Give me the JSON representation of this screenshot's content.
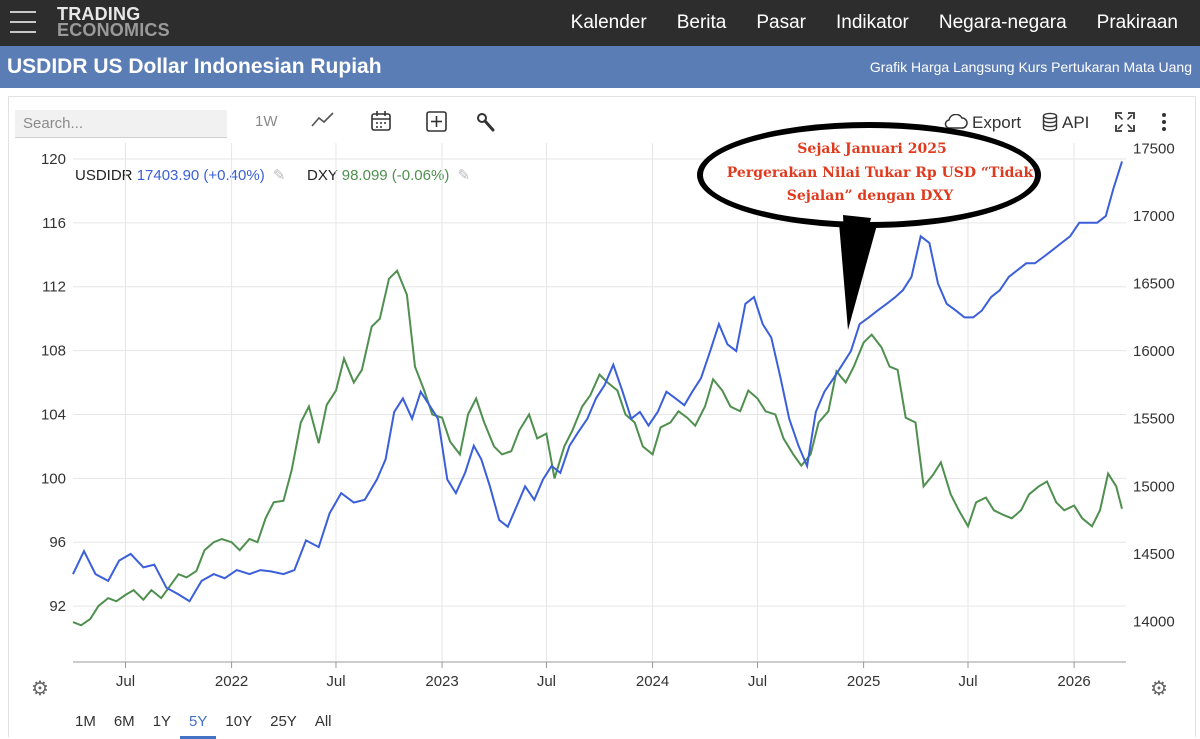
{
  "nav": {
    "logo_line1": "TRADING",
    "logo_line2": "ECONOMICS",
    "items": [
      "Kalender",
      "Berita",
      "Pasar",
      "Indikator",
      "Negara-negara",
      "Prakiraan"
    ]
  },
  "header": {
    "title": "USDIDR US Dollar Indonesian Rupiah",
    "subtitle": "Grafik Harga Langsung Kurs Pertukaran Mata Uang"
  },
  "toolbar": {
    "search_placeholder": "Search...",
    "interval_label": "1W",
    "export_label": "Export",
    "api_label": "API"
  },
  "legend": {
    "usdidr_name": "USDIDR",
    "usdidr_value": "17403.90 (+0.40%)",
    "dxy_name": "DXY",
    "dxy_value": "98.099 (-0.06%)"
  },
  "annotation": {
    "line1": "Sejak Januari 2025",
    "line2": "Pergerakan Nilai Tukar Rp USD “Tidak",
    "line3": "Sejalan” dengan DXY"
  },
  "range_tabs": {
    "items": [
      "1M",
      "6M",
      "1Y",
      "5Y",
      "10Y",
      "25Y",
      "All"
    ],
    "active": "5Y"
  },
  "colors": {
    "usdidr": "#3b5fd9",
    "dxy": "#4f8f4f",
    "title_bar": "#5b7db5",
    "annotation_text": "#e03a1e"
  },
  "chart_data": {
    "type": "line",
    "x_range": [
      "2021-04-01",
      "2026-04-01"
    ],
    "x_ticks": [
      {
        "date": "2021-07-01",
        "label": "Jul"
      },
      {
        "date": "2022-01-01",
        "label": "2022"
      },
      {
        "date": "2022-07-01",
        "label": "Jul"
      },
      {
        "date": "2023-01-01",
        "label": "2023"
      },
      {
        "date": "2023-07-01",
        "label": "Jul"
      },
      {
        "date": "2024-01-01",
        "label": "2024"
      },
      {
        "date": "2024-07-01",
        "label": "Jul"
      },
      {
        "date": "2025-01-01",
        "label": "2025"
      },
      {
        "date": "2025-07-01",
        "label": "Jul"
      },
      {
        "date": "2026-01-01",
        "label": "2026"
      }
    ],
    "left_axis": {
      "series": "DXY",
      "ticks": [
        92,
        96,
        100,
        104,
        108,
        112,
        116,
        120
      ],
      "range": [
        88.5,
        121
      ]
    },
    "right_axis": {
      "series": "USDIDR",
      "ticks": [
        14000,
        14500,
        15000,
        15500,
        16000,
        16500,
        17000,
        17500
      ],
      "range": [
        13700,
        17540
      ]
    },
    "grid": true,
    "series": [
      {
        "name": "USDIDR",
        "axis": "right",
        "points": [
          [
            "2021-04-01",
            14350
          ],
          [
            "2021-04-20",
            14520
          ],
          [
            "2021-05-10",
            14350
          ],
          [
            "2021-06-01",
            14300
          ],
          [
            "2021-06-20",
            14450
          ],
          [
            "2021-07-10",
            14500
          ],
          [
            "2021-08-01",
            14400
          ],
          [
            "2021-08-20",
            14420
          ],
          [
            "2021-09-10",
            14250
          ],
          [
            "2021-10-01",
            14200
          ],
          [
            "2021-10-20",
            14150
          ],
          [
            "2021-11-10",
            14300
          ],
          [
            "2021-12-01",
            14350
          ],
          [
            "2021-12-20",
            14320
          ],
          [
            "2022-01-10",
            14380
          ],
          [
            "2022-02-01",
            14350
          ],
          [
            "2022-02-20",
            14380
          ],
          [
            "2022-03-10",
            14370
          ],
          [
            "2022-04-01",
            14350
          ],
          [
            "2022-04-20",
            14380
          ],
          [
            "2022-05-10",
            14600
          ],
          [
            "2022-06-01",
            14550
          ],
          [
            "2022-06-20",
            14800
          ],
          [
            "2022-07-10",
            14950
          ],
          [
            "2022-08-01",
            14880
          ],
          [
            "2022-08-20",
            14900
          ],
          [
            "2022-09-10",
            15050
          ],
          [
            "2022-09-25",
            15200
          ],
          [
            "2022-10-10",
            15550
          ],
          [
            "2022-10-25",
            15650
          ],
          [
            "2022-11-10",
            15500
          ],
          [
            "2022-11-25",
            15700
          ],
          [
            "2022-12-10",
            15600
          ],
          [
            "2022-12-25",
            15500
          ],
          [
            "2023-01-10",
            15050
          ],
          [
            "2023-01-25",
            14950
          ],
          [
            "2023-02-10",
            15100
          ],
          [
            "2023-02-25",
            15300
          ],
          [
            "2023-03-10",
            15200
          ],
          [
            "2023-03-25",
            15000
          ],
          [
            "2023-04-10",
            14750
          ],
          [
            "2023-04-25",
            14700
          ],
          [
            "2023-05-10",
            14850
          ],
          [
            "2023-05-25",
            15000
          ],
          [
            "2023-06-10",
            14900
          ],
          [
            "2023-06-25",
            15050
          ],
          [
            "2023-07-10",
            15150
          ],
          [
            "2023-07-25",
            15100
          ],
          [
            "2023-08-10",
            15300
          ],
          [
            "2023-08-25",
            15400
          ],
          [
            "2023-09-10",
            15500
          ],
          [
            "2023-09-25",
            15650
          ],
          [
            "2023-10-10",
            15750
          ],
          [
            "2023-10-25",
            15900
          ],
          [
            "2023-11-10",
            15700
          ],
          [
            "2023-11-25",
            15500
          ],
          [
            "2023-12-10",
            15550
          ],
          [
            "2023-12-25",
            15450
          ],
          [
            "2024-01-10",
            15550
          ],
          [
            "2024-01-25",
            15700
          ],
          [
            "2024-02-10",
            15650
          ],
          [
            "2024-02-25",
            15600
          ],
          [
            "2024-03-10",
            15700
          ],
          [
            "2024-03-25",
            15800
          ],
          [
            "2024-04-10",
            16000
          ],
          [
            "2024-04-25",
            16200
          ],
          [
            "2024-05-10",
            16050
          ],
          [
            "2024-05-25",
            16000
          ],
          [
            "2024-06-10",
            16350
          ],
          [
            "2024-06-25",
            16400
          ],
          [
            "2024-07-10",
            16200
          ],
          [
            "2024-07-25",
            16100
          ],
          [
            "2024-08-10",
            15800
          ],
          [
            "2024-08-25",
            15500
          ],
          [
            "2024-09-10",
            15300
          ],
          [
            "2024-09-25",
            15150
          ],
          [
            "2024-10-10",
            15550
          ],
          [
            "2024-10-25",
            15700
          ],
          [
            "2024-11-10",
            15800
          ],
          [
            "2024-11-25",
            15900
          ],
          [
            "2024-12-10",
            16000
          ],
          [
            "2024-12-25",
            16200
          ],
          [
            "2025-01-10",
            16250
          ],
          [
            "2025-01-25",
            16300
          ],
          [
            "2025-02-10",
            16350
          ],
          [
            "2025-02-25",
            16400
          ],
          [
            "2025-03-10",
            16450
          ],
          [
            "2025-03-25",
            16550
          ],
          [
            "2025-04-10",
            16850
          ],
          [
            "2025-04-25",
            16800
          ],
          [
            "2025-05-10",
            16500
          ],
          [
            "2025-05-25",
            16350
          ],
          [
            "2025-06-10",
            16300
          ],
          [
            "2025-06-25",
            16250
          ],
          [
            "2025-07-10",
            16250
          ],
          [
            "2025-07-25",
            16300
          ],
          [
            "2025-08-10",
            16400
          ],
          [
            "2025-08-25",
            16450
          ],
          [
            "2025-09-10",
            16550
          ],
          [
            "2025-09-25",
            16600
          ],
          [
            "2025-10-10",
            16650
          ],
          [
            "2025-10-25",
            16650
          ],
          [
            "2025-11-10",
            16700
          ],
          [
            "2025-11-25",
            16750
          ],
          [
            "2025-12-10",
            16800
          ],
          [
            "2025-12-25",
            16850
          ],
          [
            "2026-01-10",
            16950
          ],
          [
            "2026-01-25",
            16950
          ],
          [
            "2026-02-10",
            16950
          ],
          [
            "2026-02-25",
            17000
          ],
          [
            "2026-03-10",
            17200
          ],
          [
            "2026-03-25",
            17403.9
          ]
        ]
      },
      {
        "name": "DXY",
        "axis": "left",
        "points": [
          [
            "2021-04-01",
            91.0
          ],
          [
            "2021-04-15",
            90.8
          ],
          [
            "2021-05-01",
            91.2
          ],
          [
            "2021-05-15",
            92.0
          ],
          [
            "2021-06-01",
            92.5
          ],
          [
            "2021-06-15",
            92.3
          ],
          [
            "2021-07-01",
            92.7
          ],
          [
            "2021-07-15",
            93.0
          ],
          [
            "2021-08-01",
            92.4
          ],
          [
            "2021-08-15",
            93.0
          ],
          [
            "2021-09-01",
            92.5
          ],
          [
            "2021-09-15",
            93.2
          ],
          [
            "2021-10-01",
            94.0
          ],
          [
            "2021-10-15",
            93.8
          ],
          [
            "2021-11-01",
            94.2
          ],
          [
            "2021-11-15",
            95.5
          ],
          [
            "2021-12-01",
            96.0
          ],
          [
            "2021-12-15",
            96.2
          ],
          [
            "2022-01-01",
            96.0
          ],
          [
            "2022-01-15",
            95.5
          ],
          [
            "2022-02-01",
            96.2
          ],
          [
            "2022-02-15",
            96.0
          ],
          [
            "2022-03-01",
            97.5
          ],
          [
            "2022-03-15",
            98.5
          ],
          [
            "2022-04-01",
            98.6
          ],
          [
            "2022-04-15",
            100.5
          ],
          [
            "2022-05-01",
            103.5
          ],
          [
            "2022-05-15",
            104.5
          ],
          [
            "2022-06-01",
            102.2
          ],
          [
            "2022-06-15",
            104.6
          ],
          [
            "2022-07-01",
            105.5
          ],
          [
            "2022-07-15",
            107.5
          ],
          [
            "2022-08-01",
            106.0
          ],
          [
            "2022-08-15",
            106.8
          ],
          [
            "2022-09-01",
            109.5
          ],
          [
            "2022-09-15",
            110.0
          ],
          [
            "2022-10-01",
            112.5
          ],
          [
            "2022-10-15",
            113.0
          ],
          [
            "2022-11-01",
            111.5
          ],
          [
            "2022-11-15",
            107.0
          ],
          [
            "2022-12-01",
            105.5
          ],
          [
            "2022-12-15",
            104.0
          ],
          [
            "2023-01-01",
            103.8
          ],
          [
            "2023-01-15",
            102.3
          ],
          [
            "2023-02-01",
            101.5
          ],
          [
            "2023-02-15",
            104.0
          ],
          [
            "2023-03-01",
            105.0
          ],
          [
            "2023-03-15",
            103.5
          ],
          [
            "2023-04-01",
            102.0
          ],
          [
            "2023-04-15",
            101.5
          ],
          [
            "2023-05-01",
            101.7
          ],
          [
            "2023-05-15",
            103.0
          ],
          [
            "2023-06-01",
            104.0
          ],
          [
            "2023-06-15",
            102.5
          ],
          [
            "2023-07-01",
            102.8
          ],
          [
            "2023-07-15",
            100.0
          ],
          [
            "2023-08-01",
            102.0
          ],
          [
            "2023-08-15",
            103.0
          ],
          [
            "2023-09-01",
            104.5
          ],
          [
            "2023-09-15",
            105.2
          ],
          [
            "2023-10-01",
            106.5
          ],
          [
            "2023-10-15",
            106.0
          ],
          [
            "2023-11-01",
            105.5
          ],
          [
            "2023-11-15",
            104.0
          ],
          [
            "2023-12-01",
            103.5
          ],
          [
            "2023-12-15",
            102.0
          ],
          [
            "2024-01-01",
            101.5
          ],
          [
            "2024-01-15",
            103.2
          ],
          [
            "2024-02-01",
            103.5
          ],
          [
            "2024-02-15",
            104.2
          ],
          [
            "2024-03-01",
            103.8
          ],
          [
            "2024-03-15",
            103.3
          ],
          [
            "2024-04-01",
            104.5
          ],
          [
            "2024-04-15",
            106.2
          ],
          [
            "2024-05-01",
            105.5
          ],
          [
            "2024-05-15",
            104.5
          ],
          [
            "2024-06-01",
            104.2
          ],
          [
            "2024-06-15",
            105.5
          ],
          [
            "2024-07-01",
            105.0
          ],
          [
            "2024-07-15",
            104.2
          ],
          [
            "2024-08-01",
            104.0
          ],
          [
            "2024-08-15",
            102.5
          ],
          [
            "2024-09-01",
            101.5
          ],
          [
            "2024-09-15",
            100.8
          ],
          [
            "2024-10-01",
            101.5
          ],
          [
            "2024-10-15",
            103.5
          ],
          [
            "2024-11-01",
            104.2
          ],
          [
            "2024-11-15",
            106.7
          ],
          [
            "2024-12-01",
            106.0
          ],
          [
            "2024-12-15",
            107.0
          ],
          [
            "2025-01-01",
            108.5
          ],
          [
            "2025-01-15",
            109.0
          ],
          [
            "2025-02-01",
            108.2
          ],
          [
            "2025-02-15",
            107.0
          ],
          [
            "2025-03-01",
            106.8
          ],
          [
            "2025-03-15",
            103.8
          ],
          [
            "2025-04-01",
            103.5
          ],
          [
            "2025-04-15",
            99.5
          ],
          [
            "2025-05-01",
            100.2
          ],
          [
            "2025-05-15",
            101.0
          ],
          [
            "2025-06-01",
            99.0
          ],
          [
            "2025-06-15",
            98.0
          ],
          [
            "2025-07-01",
            97.0
          ],
          [
            "2025-07-15",
            98.5
          ],
          [
            "2025-08-01",
            98.8
          ],
          [
            "2025-08-15",
            98.0
          ],
          [
            "2025-09-01",
            97.7
          ],
          [
            "2025-09-15",
            97.5
          ],
          [
            "2025-10-01",
            98.0
          ],
          [
            "2025-10-15",
            99.0
          ],
          [
            "2025-11-01",
            99.5
          ],
          [
            "2025-11-15",
            99.8
          ],
          [
            "2025-12-01",
            98.5
          ],
          [
            "2025-12-15",
            98.0
          ],
          [
            "2026-01-01",
            98.3
          ],
          [
            "2026-01-15",
            97.5
          ],
          [
            "2026-02-01",
            97.0
          ],
          [
            "2026-02-15",
            98.0
          ],
          [
            "2026-03-01",
            100.3
          ],
          [
            "2026-03-15",
            99.5
          ],
          [
            "2026-03-25",
            98.1
          ]
        ]
      }
    ]
  }
}
